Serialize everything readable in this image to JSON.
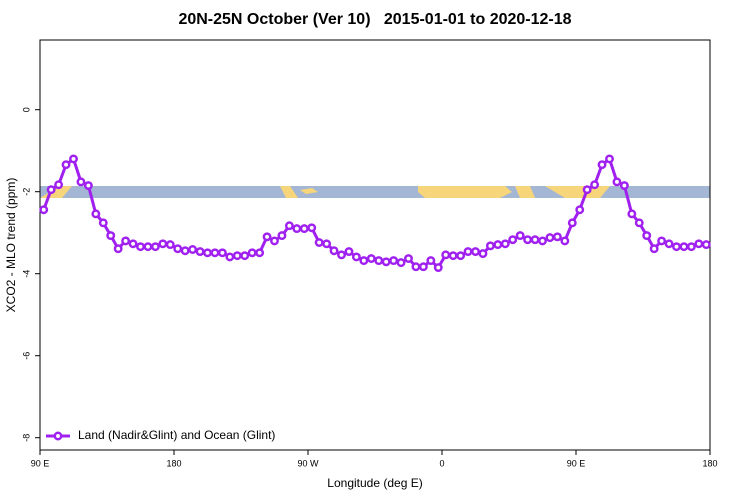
{
  "chart_data": {
    "type": "line",
    "title": "20N-25N October (Ver 10)   2015-01-01 to 2020-12-18",
    "x_label": "Longitude (deg E)",
    "y_label": "XCO2 - MLO trend (ppm)",
    "xlim": [
      90,
      540
    ],
    "ylim": [
      -8.3,
      1.7
    ],
    "xticks": [
      {
        "value": 90,
        "label": "90 E"
      },
      180,
      {
        "value": 270,
        "label": "90 W"
      },
      {
        "value": 360,
        "label": "0"
      },
      {
        "value": 450,
        "label": "90 E"
      },
      {
        "value": 540,
        "label": "180"
      }
    ],
    "yticks": [
      0,
      -2,
      -4,
      -6,
      -8
    ],
    "legend": "bottom-left",
    "x": [
      92.5,
      97.5,
      102.5,
      107.5,
      112.5,
      117.5,
      122.5,
      127.5,
      132.5,
      137.5,
      142.5,
      147.5,
      152.5,
      157.5,
      162.5,
      167.5,
      172.5,
      177.5,
      182.5,
      187.5,
      192.5,
      197.5,
      202.5,
      207.5,
      212.5,
      217.5,
      222.5,
      227.5,
      232.5,
      237.5,
      242.5,
      247.5,
      252.5,
      257.5,
      262.5,
      267.5,
      272.5,
      277.5,
      282.5,
      287.5,
      292.5,
      297.5,
      302.5,
      307.5,
      312.5,
      317.5,
      322.5,
      327.5,
      332.5,
      337.5,
      342.5,
      347.5,
      352.5,
      357.5,
      362.5,
      367.5,
      372.5,
      377.5,
      382.5,
      387.5,
      392.5,
      397.5,
      402.5,
      407.5,
      412.5,
      417.5,
      422.5,
      427.5,
      432.5,
      437.5,
      442.5,
      447.5,
      452.5,
      457.5,
      462.5,
      467.5,
      472.5,
      477.5,
      482.5,
      487.5,
      492.5,
      497.5,
      502.5,
      507.5,
      512.5,
      517.5,
      522.5,
      527.5,
      532.5,
      537.5
    ],
    "series": [
      {
        "name": "Land (Nadir&Glint) and Ocean (Glint)",
        "color": "#a020f0",
        "values": [
          -2.44,
          -1.95,
          -1.83,
          -1.34,
          -1.2,
          -1.76,
          -1.85,
          -2.54,
          -2.76,
          -3.07,
          -3.39,
          -3.2,
          -3.27,
          -3.34,
          -3.34,
          -3.34,
          -3.27,
          -3.29,
          -3.39,
          -3.44,
          -3.41,
          -3.46,
          -3.49,
          -3.49,
          -3.49,
          -3.59,
          -3.56,
          -3.56,
          -3.49,
          -3.49,
          -3.1,
          -3.2,
          -3.07,
          -2.83,
          -2.9,
          -2.9,
          -2.88,
          -3.24,
          -3.27,
          -3.44,
          -3.54,
          -3.46,
          -3.59,
          -3.68,
          -3.63,
          -3.68,
          -3.71,
          -3.68,
          -3.73,
          -3.63,
          -3.83,
          -3.83,
          -3.68,
          -3.85,
          -3.54,
          -3.56,
          -3.56,
          -3.46,
          -3.46,
          -3.51,
          -3.32,
          -3.29,
          -3.27,
          -3.17,
          -3.07,
          -3.17,
          -3.17,
          -3.2,
          -3.12,
          -3.1,
          -3.2,
          -2.76,
          -2.44,
          -1.95,
          -1.83,
          -1.34,
          -1.2,
          -1.76,
          -1.85,
          -2.54,
          -2.76,
          -3.07,
          -3.39,
          -3.2,
          -3.27,
          -3.34,
          -3.34,
          -3.34,
          -3.27,
          -3.29
        ]
      }
    ]
  }
}
